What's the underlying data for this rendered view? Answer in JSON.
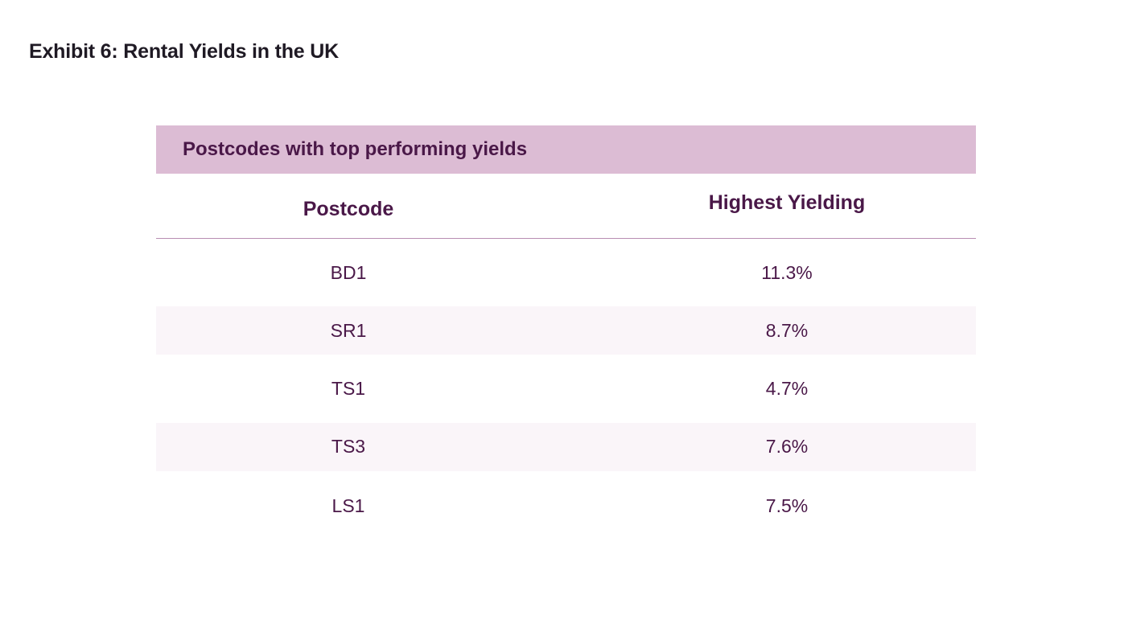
{
  "title": "Exhibit 6: Rental Yields in the UK",
  "chart_data": {
    "type": "table",
    "title": "Postcodes with top performing yields",
    "columns": [
      "Postcode",
      "Highest Yielding"
    ],
    "rows": [
      {
        "postcode": "BD1",
        "yield": "11.3%"
      },
      {
        "postcode": "SR1",
        "yield": "8.7%"
      },
      {
        "postcode": "TS1",
        "yield": "4.7%"
      },
      {
        "postcode": "TS3",
        "yield": "7.6%"
      },
      {
        "postcode": "LS1",
        "yield": "7.5%"
      }
    ],
    "colors": {
      "banner": "#dcbcd4",
      "text": "#4a1848",
      "stripe": "#faf5f9"
    }
  }
}
